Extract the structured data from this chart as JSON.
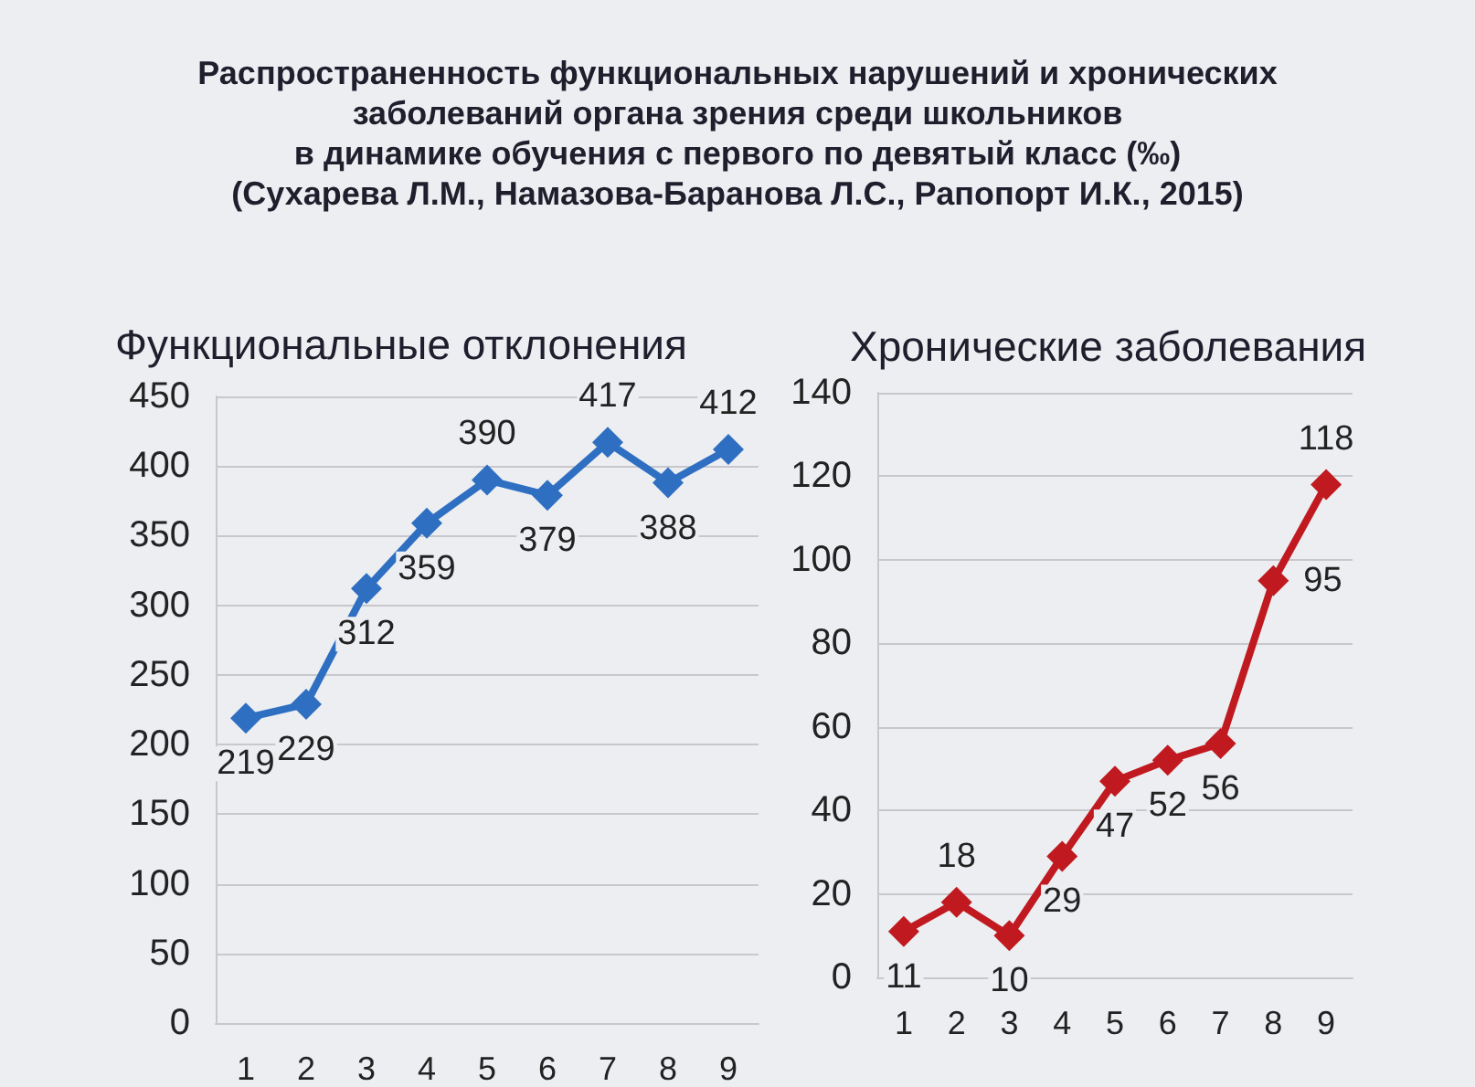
{
  "chart_data": [
    {
      "type": "other",
      "title": "Распространенность функциональных нарушений и хронических\nзаболеваний органа зрения среди школьников\nв динамике обучения с первого по девятый класс (‰)",
      "subtitle": "(Сухарева Л.М., Намазова-Баранова Л.С., Рапопорт И.К., 2015)"
    },
    {
      "type": "line",
      "title": "Функциональные отклонения",
      "categories": [
        "1",
        "2",
        "3",
        "4",
        "5",
        "6",
        "7",
        "8",
        "9"
      ],
      "series": [
        {
          "color": "#2f6fc2",
          "values": [
            219,
            229,
            312,
            359,
            390,
            379,
            417,
            388,
            412
          ]
        }
      ],
      "ylim": [
        0,
        450
      ],
      "yticks": [
        0,
        50,
        100,
        150,
        200,
        250,
        300,
        350,
        400,
        450
      ],
      "grid": "y",
      "marker": "diamond",
      "data_labels": true
    },
    {
      "type": "line",
      "title": "Хронические заболевания",
      "categories": [
        "1",
        "2",
        "3",
        "4",
        "5",
        "6",
        "7",
        "8",
        "9"
      ],
      "series": [
        {
          "color": "#c01a20",
          "values": [
            11,
            18,
            10,
            29,
            47,
            52,
            56,
            95,
            118
          ]
        }
      ],
      "ylim": [
        0,
        140
      ],
      "yticks": [
        0,
        20,
        40,
        60,
        80,
        100,
        120,
        140
      ],
      "grid": "y",
      "marker": "diamond",
      "data_labels": true
    }
  ]
}
